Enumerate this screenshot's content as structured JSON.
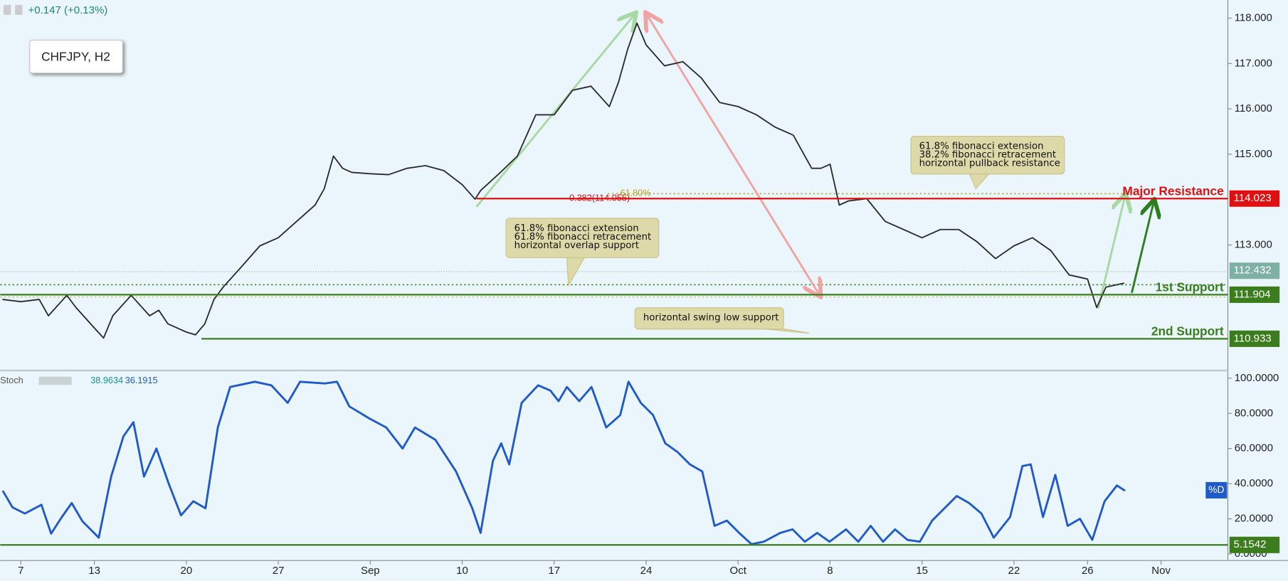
{
  "chart_data": [
    {
      "type": "line",
      "symbol": "CHFJPY, H2",
      "change": "+0.147 (+0.13%)",
      "xlim": [
        -1.12,
        65.63
      ],
      "ylim": [
        110.26,
        118.4
      ],
      "yticks": [
        {
          "value": 118,
          "label": "118.000"
        },
        {
          "value": 117,
          "label": "117.000"
        },
        {
          "value": 116,
          "label": "116.000"
        },
        {
          "value": 115,
          "label": "115.000"
        },
        {
          "value": 113,
          "label": "113.000"
        }
      ],
      "color": "#2b2b2b",
      "x": [
        -1,
        0,
        1,
        1.5,
        2.5,
        3,
        4,
        4.5,
        5,
        6,
        7,
        7.5,
        8,
        9,
        9.5,
        10,
        10.5,
        11,
        12,
        13,
        14,
        15,
        16,
        16.5,
        17,
        17.5,
        18,
        19,
        20,
        21,
        22,
        23,
        24,
        24.7,
        25,
        26,
        27,
        28,
        29,
        30,
        31,
        32,
        32.5,
        33,
        33.5,
        34,
        35,
        36,
        37,
        38,
        39,
        40,
        41,
        42,
        43,
        43.5,
        44,
        44.5,
        45,
        46,
        47,
        48,
        49,
        50,
        51,
        52,
        53,
        54,
        55,
        56,
        57,
        58,
        58.5,
        59,
        60
      ],
      "values": [
        111.8,
        111.75,
        111.8,
        111.44,
        111.89,
        111.62,
        111.17,
        110.95,
        111.44,
        111.89,
        111.44,
        111.56,
        111.26,
        111.08,
        111.02,
        111.26,
        111.8,
        112.07,
        112.52,
        112.98,
        113.16,
        113.52,
        113.88,
        114.24,
        114.96,
        114.69,
        114.6,
        114.57,
        114.55,
        114.69,
        114.75,
        114.64,
        114.33,
        114.01,
        114.2,
        114.57,
        114.96,
        115.87,
        115.87,
        116.41,
        116.5,
        116.05,
        116.59,
        117.32,
        117.89,
        117.41,
        116.95,
        117.04,
        116.68,
        116.14,
        116.05,
        115.87,
        115.6,
        115.42,
        114.69,
        114.69,
        114.78,
        113.88,
        113.97,
        114.02,
        113.52,
        113.34,
        113.16,
        113.34,
        113.34,
        113.07,
        112.7,
        112.98,
        113.16,
        112.88,
        112.34,
        112.25,
        111.62,
        112.07,
        112.16
      ],
      "last_price": 112.432,
      "levels": [
        {
          "label": "Major Resistance",
          "value": 114.023,
          "color": "#e01010"
        },
        {
          "label": "1st Support",
          "value": 111.904,
          "color": "#3b7d1c"
        },
        {
          "label": "2nd Support",
          "value": 110.933,
          "color": "#3b7d1c"
        }
      ],
      "fib_labels": [
        "0.382(114.055)",
        "61.80%"
      ],
      "annotations": [
        [
          "61.8% fibonacci extension",
          "61.8% fibonacci retracement",
          "horizontal overlap support"
        ],
        [
          "61.8% fibonacci extension",
          "38.2% fibonacci retracement",
          "horizontal pullback resistance"
        ],
        [
          "horizontal swing low support"
        ]
      ]
    },
    {
      "type": "line",
      "title": "Stoch",
      "legend_values": [
        38.9634,
        36.1915
      ],
      "xlim": [
        -1.12,
        65.63
      ],
      "ylim": [
        -3.7,
        103.7
      ],
      "yticks": [
        {
          "value": 100,
          "label": "100.0000"
        },
        {
          "value": 80,
          "label": "80.0000"
        },
        {
          "value": 60,
          "label": "60.0000"
        },
        {
          "value": 40,
          "label": "40.0000"
        },
        {
          "value": 20,
          "label": "20.0000"
        },
        {
          "value": 0,
          "label": "0.0000"
        }
      ],
      "xticks": [
        {
          "value": 0,
          "label": "7"
        },
        {
          "value": 4,
          "label": "13"
        },
        {
          "value": 9,
          "label": "20"
        },
        {
          "value": 14,
          "label": "27"
        },
        {
          "value": 19,
          "label": "Sep"
        },
        {
          "value": 24,
          "label": "10"
        },
        {
          "value": 29,
          "label": "17"
        },
        {
          "value": 34,
          "label": "24"
        },
        {
          "value": 39,
          "label": "Oct"
        },
        {
          "value": 44,
          "label": "8"
        },
        {
          "value": 49,
          "label": "15"
        },
        {
          "value": 54,
          "label": "22"
        },
        {
          "value": 58,
          "label": "26"
        },
        {
          "value": 62,
          "label": "Nov"
        }
      ],
      "x": [
        -0.98,
        -0.45,
        0.22,
        1.12,
        1.65,
        2.23,
        2.77,
        3.35,
        4.24,
        4.91,
        5.58,
        6.12,
        6.7,
        7.37,
        8.04,
        8.71,
        9.38,
        10.04,
        10.71,
        11.38,
        12.72,
        13.62,
        14.51,
        15.18,
        16.52,
        17.19,
        17.86,
        18.97,
        19.87,
        20.76,
        21.43,
        22.54,
        23.66,
        24.55,
        25.0,
        25.67,
        26.12,
        26.56,
        27.23,
        28.13,
        28.79,
        29.24,
        29.69,
        30.36,
        31.03,
        31.83,
        32.59,
        33.04,
        33.71,
        34.38,
        35.04,
        35.71,
        36.38,
        37.05,
        37.72,
        38.39,
        39.06,
        39.73,
        40.4,
        41.29,
        41.96,
        42.63,
        43.3,
        43.97,
        44.87,
        45.54,
        46.21,
        46.88,
        47.54,
        48.21,
        48.88,
        49.55,
        50.22,
        50.89,
        51.56,
        52.23,
        52.9,
        53.79,
        54.46,
        54.91,
        55.58,
        56.25,
        56.92,
        57.59,
        58.26,
        58.93,
        59.6,
        60.04
      ],
      "series": [
        {
          "name": "%D",
          "color": "#1f5ac8",
          "values": [
            36,
            26.5,
            23,
            28,
            11.6,
            21,
            29,
            18.6,
            9.3,
            44,
            67,
            75,
            44,
            60,
            40,
            22,
            30,
            26,
            72,
            95,
            98,
            96,
            86,
            98,
            97,
            98,
            84,
            77,
            72,
            60,
            72,
            65,
            47,
            26,
            12,
            53,
            63,
            51,
            86,
            96,
            93,
            87,
            95,
            87,
            95,
            72,
            79,
            98,
            86,
            79,
            63,
            58,
            51,
            47,
            16,
            19,
            12,
            5.6,
            7,
            12,
            14,
            7,
            12,
            7,
            14,
            7,
            16,
            7,
            14,
            8,
            7,
            19,
            26,
            33,
            29,
            23,
            9.3,
            21,
            50,
            51,
            21,
            45,
            16,
            20,
            8,
            30,
            39,
            36
          ]
        }
      ],
      "levels": [
        {
          "value": 5.1542,
          "color": "#3b7d1c"
        }
      ]
    }
  ]
}
